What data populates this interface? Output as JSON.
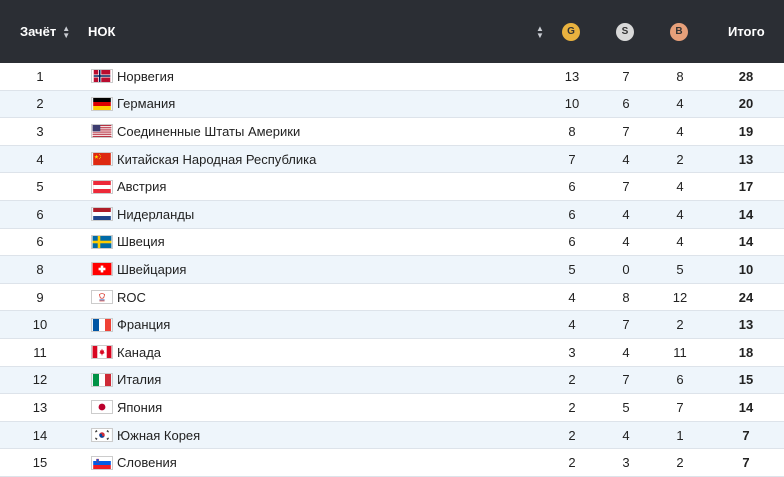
{
  "header": {
    "rank_label": "Зачёт",
    "noc_label": "НОК",
    "gold_label": "G",
    "silver_label": "S",
    "bronze_label": "B",
    "total_label": "Итого"
  },
  "colors": {
    "header_bg": "#2b2e34",
    "gold": "#e9b23f",
    "silver": "#d9d9d9",
    "bronze": "#e7a07a",
    "alt_row": "#eef5fb"
  },
  "rows": [
    {
      "rank": "1",
      "country": "Норвегия",
      "flag": "norway-flag-icon",
      "gold": "13",
      "silver": "7",
      "bronze": "8",
      "total": "28"
    },
    {
      "rank": "2",
      "country": "Германия",
      "flag": "germany-flag-icon",
      "gold": "10",
      "silver": "6",
      "bronze": "4",
      "total": "20"
    },
    {
      "rank": "3",
      "country": "Соединенные Штаты Америки",
      "flag": "usa-flag-icon",
      "gold": "8",
      "silver": "7",
      "bronze": "4",
      "total": "19"
    },
    {
      "rank": "4",
      "country": "Китайская Народная Республика",
      "flag": "china-flag-icon",
      "gold": "7",
      "silver": "4",
      "bronze": "2",
      "total": "13"
    },
    {
      "rank": "5",
      "country": "Австрия",
      "flag": "austria-flag-icon",
      "gold": "6",
      "silver": "7",
      "bronze": "4",
      "total": "17"
    },
    {
      "rank": "6",
      "country": "Нидерланды",
      "flag": "netherlands-flag-icon",
      "gold": "6",
      "silver": "4",
      "bronze": "4",
      "total": "14"
    },
    {
      "rank": "6",
      "country": "Швеция",
      "flag": "sweden-flag-icon",
      "gold": "6",
      "silver": "4",
      "bronze": "4",
      "total": "14"
    },
    {
      "rank": "8",
      "country": "Швейцария",
      "flag": "switzerland-flag-icon",
      "gold": "5",
      "silver": "0",
      "bronze": "5",
      "total": "10"
    },
    {
      "rank": "9",
      "country": "ROC",
      "flag": "roc-flag-icon",
      "gold": "4",
      "silver": "8",
      "bronze": "12",
      "total": "24"
    },
    {
      "rank": "10",
      "country": "Франция",
      "flag": "france-flag-icon",
      "gold": "4",
      "silver": "7",
      "bronze": "2",
      "total": "13"
    },
    {
      "rank": "11",
      "country": "Канада",
      "flag": "canada-flag-icon",
      "gold": "3",
      "silver": "4",
      "bronze": "11",
      "total": "18"
    },
    {
      "rank": "12",
      "country": "Италия",
      "flag": "italy-flag-icon",
      "gold": "2",
      "silver": "7",
      "bronze": "6",
      "total": "15"
    },
    {
      "rank": "13",
      "country": "Япония",
      "flag": "japan-flag-icon",
      "gold": "2",
      "silver": "5",
      "bronze": "7",
      "total": "14"
    },
    {
      "rank": "14",
      "country": "Южная Корея",
      "flag": "south-korea-flag-icon",
      "gold": "2",
      "silver": "4",
      "bronze": "1",
      "total": "7"
    },
    {
      "rank": "15",
      "country": "Словения",
      "flag": "slovenia-flag-icon",
      "gold": "2",
      "silver": "3",
      "bronze": "2",
      "total": "7"
    }
  ]
}
